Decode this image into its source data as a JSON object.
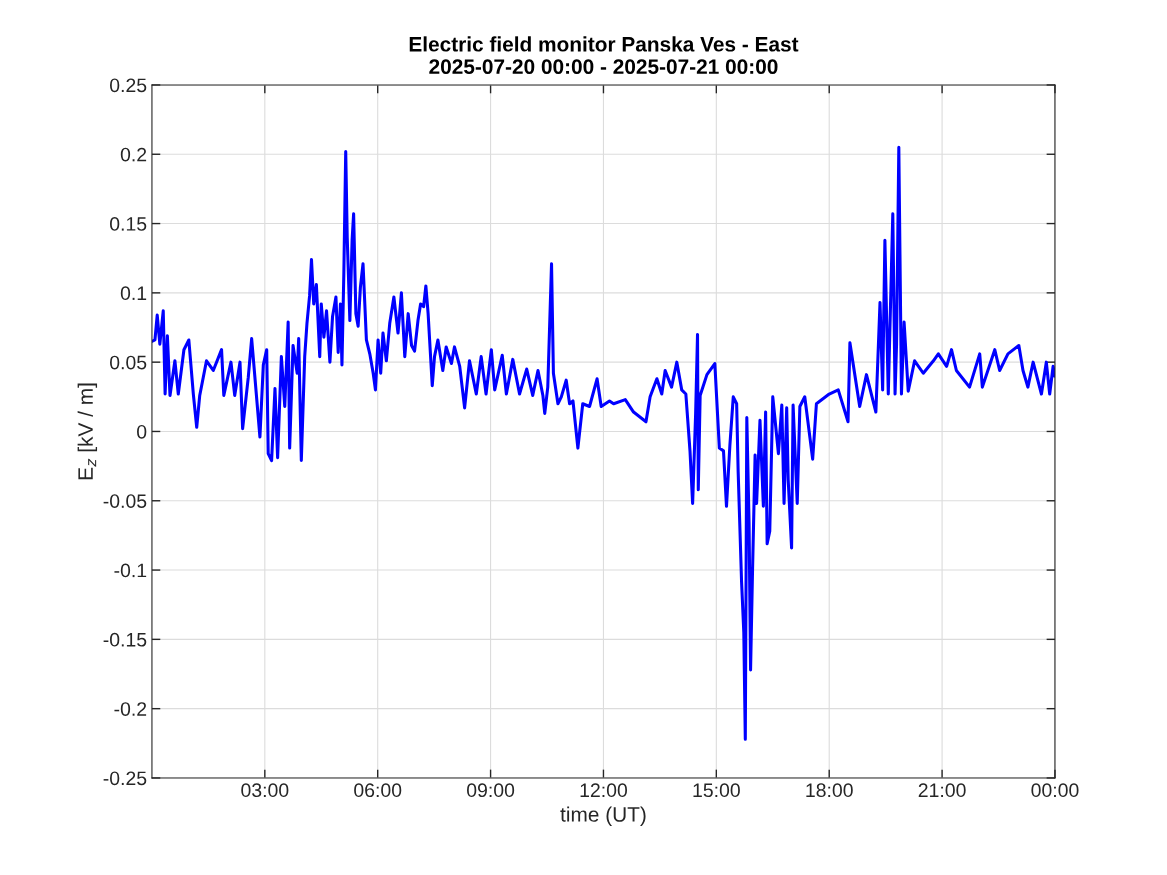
{
  "chart_data": {
    "type": "line",
    "title": "Electric field monitor Panska Ves - East\n2025-07-20 00:00 - 2025-07-21 00:00",
    "xlabel": "time (UT)",
    "ylabel": "E$_{z}$ [kV / m]",
    "series": [
      {
        "color": "#0000ff",
        "x": [
          0.0,
          0.08,
          0.14,
          0.21,
          0.3,
          0.35,
          0.41,
          0.48,
          0.61,
          0.7,
          0.85,
          0.98,
          1.1,
          1.19,
          1.27,
          1.45,
          1.63,
          1.85,
          1.91,
          2.1,
          2.2,
          2.34,
          2.41,
          2.56,
          2.65,
          2.78,
          2.87,
          2.96,
          3.05,
          3.09,
          3.18,
          3.27,
          3.34,
          3.44,
          3.53,
          3.62,
          3.66,
          3.75,
          3.86,
          3.9,
          3.97,
          4.06,
          4.12,
          4.19,
          4.24,
          4.3,
          4.37,
          4.46,
          4.5,
          4.57,
          4.64,
          4.73,
          4.8,
          4.89,
          4.95,
          5.01,
          5.05,
          5.1,
          5.15,
          5.19,
          5.26,
          5.32,
          5.36,
          5.42,
          5.48,
          5.54,
          5.61,
          5.7,
          5.79,
          5.88,
          5.94,
          6.01,
          6.08,
          6.14,
          6.23,
          6.32,
          6.43,
          6.54,
          6.63,
          6.72,
          6.81,
          6.9,
          6.98,
          7.07,
          7.14,
          7.22,
          7.28,
          7.34,
          7.38,
          7.45,
          7.51,
          7.6,
          7.73,
          7.82,
          7.96,
          8.04,
          8.18,
          8.31,
          8.44,
          8.62,
          8.75,
          8.88,
          9.02,
          9.11,
          9.31,
          9.42,
          9.59,
          9.77,
          9.96,
          10.12,
          10.26,
          10.39,
          10.44,
          10.52,
          10.62,
          10.67,
          10.79,
          10.88,
          11.01,
          11.1,
          11.19,
          11.32,
          11.45,
          11.63,
          11.83,
          11.94,
          12.16,
          12.27,
          12.58,
          12.8,
          13.13,
          13.24,
          13.42,
          13.55,
          13.64,
          13.81,
          13.95,
          14.08,
          14.19,
          14.3,
          14.37,
          14.45,
          14.5,
          14.52,
          14.57,
          14.75,
          14.96,
          15.08,
          15.19,
          15.27,
          15.36,
          15.45,
          15.54,
          15.58,
          15.67,
          15.73,
          15.77,
          15.81,
          15.87,
          15.91,
          15.96,
          16.03,
          16.07,
          16.16,
          16.25,
          16.31,
          16.35,
          16.42,
          16.5,
          16.65,
          16.74,
          16.8,
          16.87,
          16.91,
          17.0,
          17.04,
          17.15,
          17.22,
          17.35,
          17.56,
          17.66,
          18.0,
          18.24,
          18.5,
          18.55,
          18.81,
          18.99,
          19.24,
          19.35,
          19.42,
          19.48,
          19.57,
          19.69,
          19.75,
          19.79,
          19.85,
          19.92,
          19.99,
          20.1,
          20.27,
          20.5,
          20.77,
          20.9,
          21.12,
          21.25,
          21.38,
          21.73,
          22.0,
          22.07,
          22.4,
          22.53,
          22.75,
          23.04,
          23.15,
          23.28,
          23.42,
          23.64,
          23.77,
          23.86,
          23.95,
          24.0
        ],
        "values": [
          0.065,
          0.066,
          0.084,
          0.063,
          0.087,
          0.027,
          0.069,
          0.026,
          0.051,
          0.027,
          0.059,
          0.066,
          0.027,
          0.003,
          0.026,
          0.051,
          0.044,
          0.059,
          0.026,
          0.05,
          0.026,
          0.05,
          0.002,
          0.039,
          0.067,
          0.025,
          -0.004,
          0.048,
          0.059,
          -0.016,
          -0.021,
          0.031,
          -0.019,
          0.054,
          0.018,
          0.079,
          -0.012,
          0.062,
          0.042,
          0.067,
          -0.021,
          0.054,
          0.078,
          0.098,
          0.124,
          0.092,
          0.106,
          0.054,
          0.092,
          0.068,
          0.087,
          0.05,
          0.083,
          0.097,
          0.057,
          0.092,
          0.048,
          0.114,
          0.202,
          0.14,
          0.08,
          0.138,
          0.157,
          0.085,
          0.076,
          0.104,
          0.121,
          0.066,
          0.056,
          0.042,
          0.03,
          0.066,
          0.042,
          0.071,
          0.051,
          0.078,
          0.097,
          0.071,
          0.1,
          0.054,
          0.085,
          0.062,
          0.058,
          0.08,
          0.092,
          0.09,
          0.105,
          0.085,
          0.066,
          0.033,
          0.054,
          0.066,
          0.044,
          0.061,
          0.049,
          0.061,
          0.047,
          0.017,
          0.051,
          0.027,
          0.054,
          0.027,
          0.059,
          0.03,
          0.055,
          0.027,
          0.052,
          0.027,
          0.045,
          0.026,
          0.044,
          0.026,
          0.013,
          0.032,
          0.121,
          0.042,
          0.02,
          0.025,
          0.037,
          0.02,
          0.022,
          -0.012,
          0.02,
          0.018,
          0.038,
          0.018,
          0.022,
          0.02,
          0.023,
          0.014,
          0.007,
          0.025,
          0.038,
          0.027,
          0.044,
          0.032,
          0.05,
          0.03,
          0.027,
          -0.014,
          -0.052,
          0.013,
          0.07,
          -0.042,
          0.026,
          0.041,
          0.049,
          -0.012,
          -0.014,
          -0.054,
          -0.01,
          0.025,
          0.02,
          -0.029,
          -0.108,
          -0.145,
          -0.222,
          0.01,
          -0.066,
          -0.172,
          -0.103,
          -0.017,
          -0.052,
          0.008,
          -0.054,
          0.014,
          -0.081,
          -0.072,
          0.025,
          -0.016,
          0.019,
          -0.052,
          0.017,
          -0.035,
          -0.084,
          0.019,
          -0.052,
          0.018,
          0.025,
          -0.02,
          0.02,
          0.027,
          0.03,
          0.007,
          0.064,
          0.018,
          0.041,
          0.014,
          0.093,
          0.03,
          0.138,
          0.027,
          0.157,
          0.027,
          0.063,
          0.205,
          0.027,
          0.079,
          0.029,
          0.051,
          0.042,
          0.051,
          0.056,
          0.047,
          0.059,
          0.044,
          0.032,
          0.056,
          0.032,
          0.059,
          0.044,
          0.056,
          0.062,
          0.044,
          0.032,
          0.05,
          0.027,
          0.05,
          0.027,
          0.047,
          0.04
        ]
      }
    ],
    "xlim": [
      0,
      24
    ],
    "xticks": [
      {
        "value": 3,
        "label": "03:00"
      },
      {
        "value": 6,
        "label": "06:00"
      },
      {
        "value": 9,
        "label": "09:00"
      },
      {
        "value": 12,
        "label": "12:00"
      },
      {
        "value": 15,
        "label": "15:00"
      },
      {
        "value": 18,
        "label": "18:00"
      },
      {
        "value": 21,
        "label": "21:00"
      },
      {
        "value": 24,
        "label": "00:00"
      }
    ],
    "ylim": [
      -0.25,
      0.25
    ],
    "yticks": [
      -0.25,
      -0.2,
      -0.15,
      -0.1,
      -0.05,
      0,
      0.05,
      0.1,
      0.15,
      0.2,
      0.25
    ],
    "grid": true,
    "line_style": "solid"
  }
}
